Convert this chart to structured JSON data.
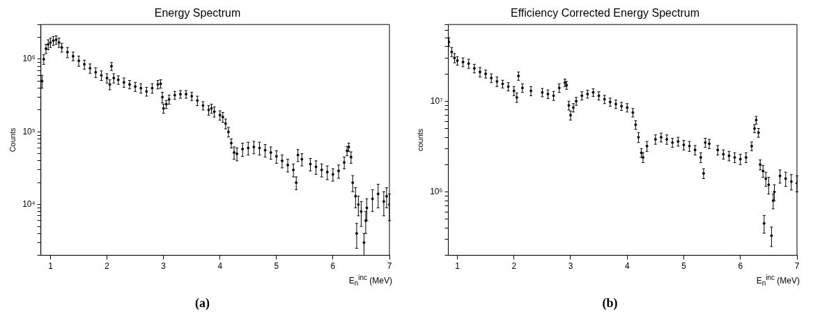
{
  "chart_data": [
    {
      "type": "scatter",
      "title": "Energy Spectrum",
      "xlabel": "E$_{n}$$^{inc}$ (MeV)",
      "ylabel": "Counts",
      "annotations": [
        "(a)"
      ],
      "log": "y",
      "grid": false,
      "legend": false,
      "marker": "circle",
      "color": "#000000",
      "xlim": [
        0.83,
        7
      ],
      "xticks": [
        1,
        2,
        3,
        4,
        5,
        6,
        7
      ],
      "ylim": [
        2000,
        3000000
      ],
      "yticks": [
        {
          "value": 2000,
          "label": null
        },
        {
          "value": 3000,
          "label": null
        },
        {
          "value": 4000,
          "label": null
        },
        {
          "value": 5000,
          "label": null
        },
        {
          "value": 6000,
          "label": null
        },
        {
          "value": 7000,
          "label": null
        },
        {
          "value": 8000,
          "label": null
        },
        {
          "value": 9000,
          "label": null
        },
        {
          "value": 10000,
          "label": "10⁴"
        },
        {
          "value": 20000,
          "label": null
        },
        {
          "value": 30000,
          "label": null
        },
        {
          "value": 40000,
          "label": null
        },
        {
          "value": 50000,
          "label": null
        },
        {
          "value": 60000,
          "label": null
        },
        {
          "value": 70000,
          "label": null
        },
        {
          "value": 80000,
          "label": null
        },
        {
          "value": 90000,
          "label": null
        },
        {
          "value": 100000,
          "label": "10⁵"
        },
        {
          "value": 200000,
          "label": null
        },
        {
          "value": 300000,
          "label": null
        },
        {
          "value": 400000,
          "label": null
        },
        {
          "value": 500000,
          "label": null
        },
        {
          "value": 600000,
          "label": null
        },
        {
          "value": 700000,
          "label": null
        },
        {
          "value": 800000,
          "label": null
        },
        {
          "value": 900000,
          "label": null
        },
        {
          "value": 1000000,
          "label": "10⁶"
        },
        {
          "value": 2000000,
          "label": null
        },
        {
          "value": 3000000,
          "label": null
        }
      ],
      "x": [
        0.85,
        0.88,
        0.92,
        0.96,
        1.0,
        1.05,
        1.1,
        1.15,
        1.2,
        1.3,
        1.4,
        1.5,
        1.6,
        1.7,
        1.8,
        1.9,
        2.0,
        2.05,
        2.08,
        2.12,
        2.2,
        2.3,
        2.4,
        2.5,
        2.6,
        2.7,
        2.8,
        2.9,
        2.95,
        2.98,
        3.0,
        3.05,
        3.1,
        3.2,
        3.3,
        3.4,
        3.5,
        3.6,
        3.7,
        3.8,
        3.85,
        3.9,
        4.0,
        4.05,
        4.1,
        4.15,
        4.2,
        4.25,
        4.3,
        4.4,
        4.5,
        4.6,
        4.7,
        4.8,
        4.9,
        5.0,
        5.1,
        5.2,
        5.3,
        5.35,
        5.38,
        5.45,
        5.6,
        5.7,
        5.8,
        5.9,
        6.0,
        6.1,
        6.2,
        6.25,
        6.28,
        6.32,
        6.35,
        6.4,
        6.42,
        6.45,
        6.5,
        6.55,
        6.58,
        6.6,
        6.7,
        6.8,
        6.9,
        6.95,
        7.0
      ],
      "values": [
        500000,
        1000000,
        1400000,
        1600000,
        1700000,
        1800000,
        1850000,
        1700000,
        1450000,
        1250000,
        1100000,
        950000,
        850000,
        750000,
        660000,
        600000,
        550000,
        450000,
        800000,
        550000,
        520000,
        480000,
        450000,
        420000,
        400000,
        360000,
        400000,
        450000,
        460000,
        300000,
        210000,
        240000,
        280000,
        320000,
        330000,
        330000,
        310000,
        270000,
        230000,
        200000,
        210000,
        190000,
        170000,
        160000,
        130000,
        100000,
        70000,
        52000,
        50000,
        58000,
        60000,
        62000,
        60000,
        56000,
        52000,
        46000,
        40000,
        35000,
        30000,
        20000,
        48000,
        42000,
        36000,
        33000,
        30000,
        28000,
        26000,
        29000,
        38000,
        55000,
        62000,
        45000,
        20000,
        13000,
        4000,
        10000,
        8000,
        3000,
        6000,
        9000,
        12000,
        14000,
        11000,
        13000,
        10000
      ],
      "errors": [
        100000,
        150000,
        200000,
        250000,
        250000,
        250000,
        250000,
        250000,
        200000,
        200000,
        150000,
        150000,
        120000,
        110000,
        100000,
        90000,
        80000,
        70000,
        100000,
        80000,
        70000,
        70000,
        60000,
        60000,
        60000,
        50000,
        60000,
        60000,
        60000,
        50000,
        30000,
        30000,
        40000,
        40000,
        40000,
        40000,
        40000,
        40000,
        30000,
        30000,
        30000,
        30000,
        25000,
        25000,
        20000,
        15000,
        10000,
        10000,
        10000,
        12000,
        12000,
        12000,
        12000,
        11000,
        10000,
        9000,
        8000,
        7000,
        6000,
        4000,
        9000,
        8000,
        7000,
        7000,
        6000,
        6000,
        5000,
        6000,
        7000,
        8000,
        8000,
        8000,
        5000,
        4000,
        1500,
        3000,
        3000,
        1000,
        2000,
        3000,
        4000,
        5000,
        4000,
        4000,
        4000
      ]
    },
    {
      "type": "scatter",
      "title": "Efficiency Corrected Energy Spectrum",
      "xlabel": "E$_{n}$$^{inc}$ (MeV)",
      "ylabel": "counts",
      "annotations": [
        "(b)"
      ],
      "log": "y",
      "grid": false,
      "legend": false,
      "marker": "circle",
      "color": "#000000",
      "xlim": [
        0.84,
        7
      ],
      "xticks": [
        1,
        2,
        3,
        4,
        5,
        6,
        7
      ],
      "ylim": [
        200000,
        70000000
      ],
      "yticks": [
        {
          "value": 200000,
          "label": null
        },
        {
          "value": 300000,
          "label": null
        },
        {
          "value": 400000,
          "label": null
        },
        {
          "value": 500000,
          "label": null
        },
        {
          "value": 600000,
          "label": null
        },
        {
          "value": 700000,
          "label": null
        },
        {
          "value": 800000,
          "label": null
        },
        {
          "value": 900000,
          "label": null
        },
        {
          "value": 1000000,
          "label": "10⁶"
        },
        {
          "value": 2000000,
          "label": null
        },
        {
          "value": 3000000,
          "label": null
        },
        {
          "value": 4000000,
          "label": null
        },
        {
          "value": 5000000,
          "label": null
        },
        {
          "value": 6000000,
          "label": null
        },
        {
          "value": 7000000,
          "label": null
        },
        {
          "value": 8000000,
          "label": null
        },
        {
          "value": 9000000,
          "label": null
        },
        {
          "value": 10000000,
          "label": "10⁷"
        },
        {
          "value": 20000000,
          "label": null
        },
        {
          "value": 30000000,
          "label": null
        },
        {
          "value": 40000000,
          "label": null
        },
        {
          "value": 50000000,
          "label": null
        },
        {
          "value": 60000000,
          "label": null
        },
        {
          "value": 70000000,
          "label": null
        }
      ],
      "x": [
        0.85,
        0.9,
        0.95,
        1.0,
        1.1,
        1.2,
        1.3,
        1.4,
        1.5,
        1.6,
        1.7,
        1.8,
        1.9,
        2.0,
        2.05,
        2.08,
        2.15,
        2.3,
        2.5,
        2.6,
        2.7,
        2.8,
        2.9,
        2.93,
        2.97,
        3.0,
        3.05,
        3.1,
        3.2,
        3.3,
        3.4,
        3.5,
        3.6,
        3.7,
        3.8,
        3.9,
        4.0,
        4.1,
        4.15,
        4.2,
        4.25,
        4.28,
        4.35,
        4.5,
        4.6,
        4.7,
        4.8,
        4.9,
        5.0,
        5.1,
        5.2,
        5.3,
        5.35,
        5.38,
        5.45,
        5.6,
        5.7,
        5.8,
        5.9,
        6.0,
        6.1,
        6.2,
        6.25,
        6.28,
        6.32,
        6.35,
        6.4,
        6.42,
        6.45,
        6.5,
        6.55,
        6.58,
        6.6,
        6.7,
        6.8,
        6.9,
        7.0
      ],
      "values": [
        45000000,
        35000000,
        30000000,
        28000000,
        27000000,
        26000000,
        23000000,
        21000000,
        20000000,
        18000000,
        16500000,
        15500000,
        14500000,
        13000000,
        11000000,
        19000000,
        14000000,
        13000000,
        12500000,
        12000000,
        11500000,
        14000000,
        16000000,
        15000000,
        9000000,
        7000000,
        8500000,
        10000000,
        11500000,
        12000000,
        12500000,
        11500000,
        10500000,
        9800000,
        9300000,
        8800000,
        8500000,
        7500000,
        5500000,
        4000000,
        2700000,
        2400000,
        3200000,
        3800000,
        4000000,
        3800000,
        3500000,
        3600000,
        3300000,
        3200000,
        2900000,
        2400000,
        1600000,
        3500000,
        3400000,
        2900000,
        2600000,
        2500000,
        2400000,
        2300000,
        2400000,
        3200000,
        5000000,
        6200000,
        4500000,
        2000000,
        1700000,
        450000,
        1400000,
        1200000,
        330000,
        800000,
        1000000,
        1500000,
        1400000,
        1300000,
        1250000
      ],
      "errors": [
        5000000,
        4000000,
        3500000,
        3000000,
        3000000,
        3000000,
        2500000,
        2500000,
        2000000,
        2000000,
        2000000,
        1500000,
        1500000,
        1500000,
        1300000,
        2000000,
        1500000,
        1500000,
        1300000,
        1300000,
        1300000,
        1500000,
        1500000,
        1500000,
        1000000,
        800000,
        900000,
        1000000,
        1200000,
        1200000,
        1200000,
        1200000,
        1100000,
        1000000,
        1000000,
        900000,
        900000,
        800000,
        600000,
        500000,
        300000,
        300000,
        400000,
        450000,
        450000,
        450000,
        400000,
        400000,
        400000,
        400000,
        350000,
        300000,
        200000,
        400000,
        400000,
        350000,
        300000,
        300000,
        300000,
        300000,
        300000,
        350000,
        500000,
        600000,
        500000,
        250000,
        250000,
        100000,
        250000,
        250000,
        80000,
        150000,
        200000,
        250000,
        250000,
        250000,
        250000
      ]
    }
  ]
}
